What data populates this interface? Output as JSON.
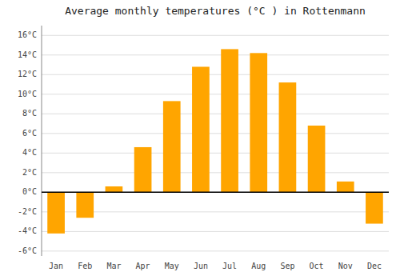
{
  "chart_data": {
    "type": "bar",
    "title": "Average monthly temperatures (°C ) in Rottenmann",
    "categories": [
      "Jan",
      "Feb",
      "Mar",
      "Apr",
      "May",
      "Jun",
      "Jul",
      "Aug",
      "Sep",
      "Oct",
      "Nov",
      "Dec"
    ],
    "values": [
      -4.2,
      -2.6,
      0.6,
      4.6,
      9.3,
      12.8,
      14.6,
      14.2,
      11.2,
      6.8,
      1.1,
      -3.2
    ],
    "color": "#FFA500",
    "ylim": [
      -6.5,
      17
    ],
    "yticks": [
      {
        "value": -6,
        "label": "-6°C"
      },
      {
        "value": -4,
        "label": "-4°C"
      },
      {
        "value": -2,
        "label": "-2°C"
      },
      {
        "value": 0,
        "label": "0°C"
      },
      {
        "value": 2,
        "label": "2°C"
      },
      {
        "value": 4,
        "label": "4°C"
      },
      {
        "value": 6,
        "label": "6°C"
      },
      {
        "value": 8,
        "label": "8°C"
      },
      {
        "value": 10,
        "label": "10°C"
      },
      {
        "value": 12,
        "label": "12°C"
      },
      {
        "value": 14,
        "label": "14°C"
      },
      {
        "value": 16,
        "label": "16°C"
      }
    ],
    "grid": true
  }
}
